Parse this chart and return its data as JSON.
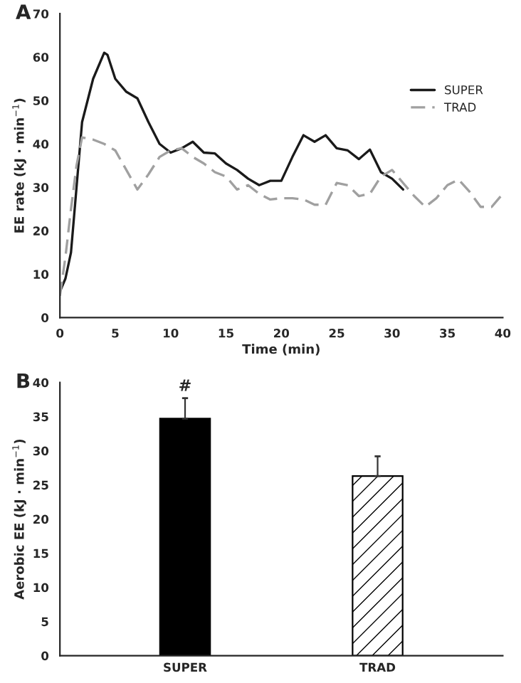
{
  "chart_data": [
    {
      "type": "line",
      "title": "A",
      "xlabel": "Time (min)",
      "ylabel": "EE rate (kJ · min$^{−1}$)",
      "xlim": [
        0,
        40
      ],
      "ylim": [
        0,
        70
      ],
      "xticks": [
        0,
        5,
        10,
        15,
        20,
        25,
        30,
        35,
        40
      ],
      "yticks": [
        0,
        10,
        20,
        30,
        40,
        50,
        60,
        70
      ],
      "grid": false,
      "legend": "top right",
      "marker": "none",
      "series": [
        {
          "name": "SUPER",
          "color": "#1a1a1a",
          "line_style": "solid",
          "x": [
            0,
            0.5,
            1,
            1.5,
            2,
            3,
            4,
            4.3,
            5,
            6,
            7,
            8,
            9,
            10,
            11,
            12,
            13,
            14,
            15,
            16,
            17,
            18,
            19,
            20,
            21,
            22,
            23,
            24,
            25,
            26,
            27,
            28,
            29,
            30,
            31
          ],
          "values": [
            6,
            9,
            15,
            30,
            45,
            55,
            61,
            60.5,
            55,
            52,
            50.5,
            45,
            40,
            38,
            39,
            40.5,
            38,
            37.8,
            35.5,
            34,
            32,
            30.5,
            31.5,
            31.5,
            37,
            42,
            40.5,
            42,
            39,
            38.5,
            36.5,
            38.7,
            33.5,
            32,
            29.5
          ]
        },
        {
          "name": "TRAD",
          "color": "#a0a0a0",
          "line_style": "dashed",
          "x": [
            0,
            0.5,
            1,
            1.5,
            2,
            3,
            4,
            5,
            6,
            7,
            8,
            9,
            10,
            11,
            12,
            13,
            14,
            15,
            16,
            17,
            18,
            19,
            20,
            21,
            22,
            23,
            24,
            25,
            26,
            27,
            28,
            29,
            30,
            31,
            32,
            33,
            34,
            35,
            36,
            37,
            38,
            39,
            40
          ],
          "values": [
            5,
            14,
            25,
            35,
            41.5,
            41,
            40,
            38.5,
            34,
            29.5,
            33,
            37,
            38.5,
            39,
            37,
            35.5,
            33.5,
            32.5,
            29.5,
            30.5,
            28.5,
            27.2,
            27.5,
            27.5,
            27.2,
            26,
            26,
            31,
            30.5,
            28,
            28.5,
            32.5,
            34,
            31,
            28,
            25.5,
            27.5,
            30.5,
            31.8,
            29,
            25.5,
            25.5,
            28.5
          ]
        }
      ]
    },
    {
      "type": "bar",
      "title": "B",
      "ylabel": "Aerobic EE (kJ · min$^{−1}$)",
      "categories": [
        "SUPER",
        "TRAD"
      ],
      "ylim": [
        0,
        40
      ],
      "yticks": [
        0,
        5,
        10,
        15,
        20,
        25,
        30,
        35,
        40
      ],
      "grid": false,
      "series": [
        {
          "colors": [
            "#000000",
            "#ffffff"
          ],
          "values": [
            34.7,
            26.3
          ],
          "errors": [
            [
              34.7,
              37.7
            ],
            [
              26.3,
              29.2
            ]
          ]
        }
      ],
      "annotations": [
        "#"
      ]
    }
  ]
}
